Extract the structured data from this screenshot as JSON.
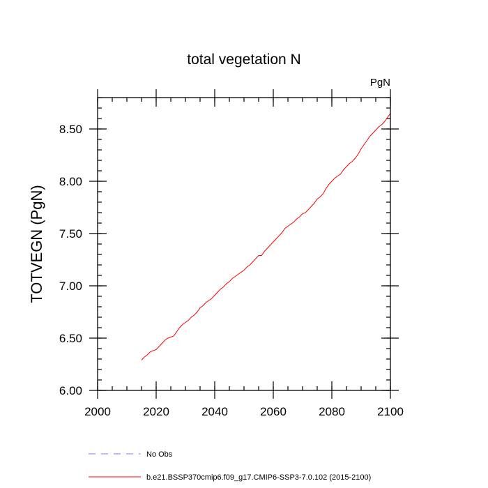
{
  "chart_data": {
    "type": "line",
    "title": "total vegetation N",
    "units_label": "PgN",
    "xlabel": "",
    "ylabel": "TOTVEGN  (PgN)",
    "xlim": [
      2000,
      2100
    ],
    "ylim": [
      6.0,
      8.8
    ],
    "x_ticks": [
      2000,
      2020,
      2040,
      2060,
      2080,
      2100
    ],
    "x_tick_labels": [
      "2000",
      "2020",
      "2040",
      "2060",
      "2080",
      "2100"
    ],
    "y_ticks": [
      6.0,
      6.5,
      7.0,
      7.5,
      8.0,
      8.5
    ],
    "y_tick_labels": [
      "6.00",
      "6.50",
      "7.00",
      "7.50",
      "8.00",
      "8.50"
    ],
    "series": [
      {
        "name": "b.e21.BSSP370cmip6.f09_g17.CMIP6-SSP3-7.0.102 (2015-2100)",
        "color": "#ff0000",
        "x": [
          2015,
          2016,
          2017,
          2018,
          2019,
          2020,
          2021,
          2022,
          2023,
          2024,
          2025,
          2026,
          2027,
          2028,
          2029,
          2030,
          2031,
          2032,
          2033,
          2034,
          2035,
          2036,
          2037,
          2038,
          2039,
          2040,
          2041,
          2042,
          2043,
          2044,
          2045,
          2046,
          2047,
          2048,
          2049,
          2050,
          2051,
          2052,
          2053,
          2054,
          2055,
          2056,
          2057,
          2058,
          2059,
          2060,
          2061,
          2062,
          2063,
          2064,
          2065,
          2066,
          2067,
          2068,
          2069,
          2070,
          2071,
          2072,
          2073,
          2074,
          2075,
          2076,
          2077,
          2078,
          2079,
          2080,
          2081,
          2082,
          2083,
          2084,
          2085,
          2086,
          2087,
          2088,
          2089,
          2090,
          2091,
          2092,
          2093,
          2094,
          2095,
          2096,
          2097,
          2098,
          2099,
          2100
        ],
        "values": [
          6.29,
          6.32,
          6.34,
          6.37,
          6.38,
          6.39,
          6.42,
          6.45,
          6.48,
          6.5,
          6.51,
          6.52,
          6.56,
          6.6,
          6.63,
          6.65,
          6.67,
          6.7,
          6.72,
          6.75,
          6.79,
          6.81,
          6.84,
          6.86,
          6.88,
          6.91,
          6.94,
          6.97,
          6.99,
          7.02,
          7.04,
          7.07,
          7.09,
          7.11,
          7.13,
          7.15,
          7.18,
          7.2,
          7.23,
          7.26,
          7.29,
          7.29,
          7.33,
          7.36,
          7.39,
          7.42,
          7.45,
          7.48,
          7.51,
          7.55,
          7.57,
          7.59,
          7.61,
          7.64,
          7.66,
          7.69,
          7.7,
          7.73,
          7.76,
          7.79,
          7.83,
          7.85,
          7.88,
          7.93,
          7.97,
          8.0,
          8.03,
          8.05,
          8.07,
          8.11,
          8.14,
          8.17,
          8.19,
          8.22,
          8.26,
          8.31,
          8.35,
          8.39,
          8.43,
          8.46,
          8.49,
          8.52,
          8.54,
          8.57,
          8.61,
          8.65
        ]
      },
      {
        "name": "No Obs",
        "color": "#7777ff",
        "dashed": true,
        "x": [],
        "values": []
      }
    ],
    "legend_position": "bottom-left",
    "grid": false
  }
}
